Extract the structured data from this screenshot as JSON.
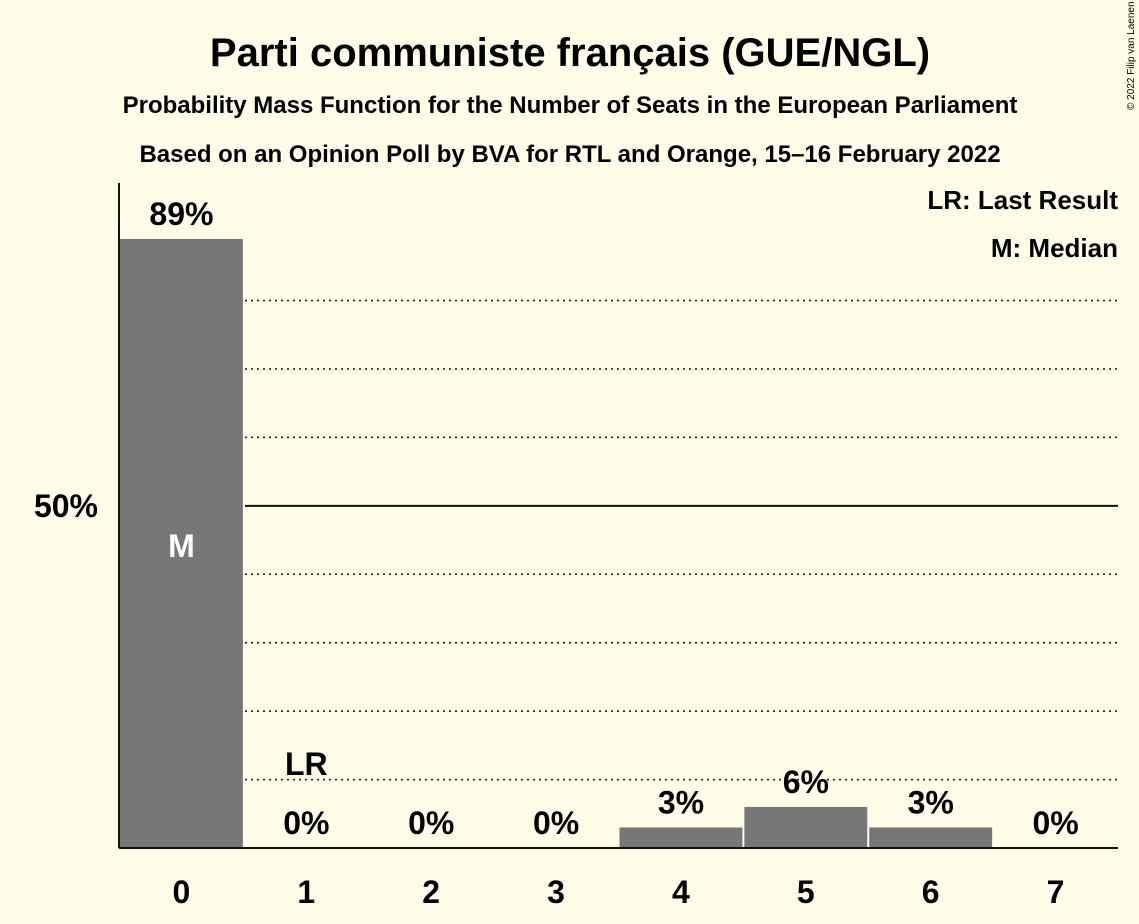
{
  "title": "Parti communiste français (GUE/NGL)",
  "subtitle1": "Probability Mass Function for the Number of Seats in the European Parliament",
  "subtitle2": "Based on an Opinion Poll by BVA for RTL and Orange, 15–16 February 2022",
  "copyright": "© 2022 Filip van Laenen",
  "legend": {
    "last_result": "LR: Last Result",
    "median": "M: Median"
  },
  "colors": {
    "background": "#fffde7",
    "bar": "#777777",
    "text": "#111111"
  },
  "chart_data": {
    "type": "bar",
    "categories": [
      "0",
      "1",
      "2",
      "3",
      "4",
      "5",
      "6",
      "7"
    ],
    "values": [
      89,
      0,
      0,
      0,
      3,
      6,
      3,
      0
    ],
    "value_labels": [
      "89%",
      "0%",
      "0%",
      "0%",
      "3%",
      "6%",
      "3%",
      "0%"
    ],
    "ylim": [
      0,
      100
    ],
    "y_tick_label": "50%",
    "y_tick_value": 50,
    "gridlines": [
      10,
      20,
      30,
      40,
      60,
      70,
      80
    ],
    "median_category": "0",
    "median_marker": "M",
    "last_result_category": "1",
    "last_result_marker": "LR"
  }
}
